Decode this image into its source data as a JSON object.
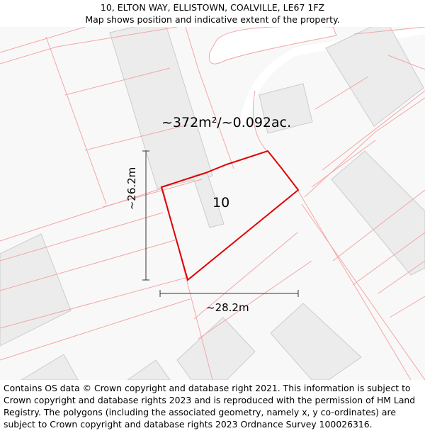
{
  "header": {
    "address": "10, ELTON WAY, ELLISTOWN, COALVILLE, LE67 1FZ",
    "subtitle": "Map shows position and indicative extent of the property."
  },
  "map": {
    "area_label": "~372m²/~0.092ac.",
    "plot_number": "10",
    "width_dimension": "~28.2m",
    "height_dimension": "~26.2m",
    "colors": {
      "background": "#f8f8f8",
      "building_fill": "#ececec",
      "building_stroke": "#cccccc",
      "parcel_line": "#f4a6a6",
      "property_outline": "#e00000",
      "road_fill": "#ffffff"
    }
  },
  "footer": {
    "attribution": "Contains OS data © Crown copyright and database right 2021. This information is subject to Crown copyright and database rights 2023 and is reproduced with the permission of HM Land Registry. The polygons (including the associated geometry, namely x, y co-ordinates) are subject to Crown copyright and database rights 2023 Ordnance Survey 100026316."
  }
}
